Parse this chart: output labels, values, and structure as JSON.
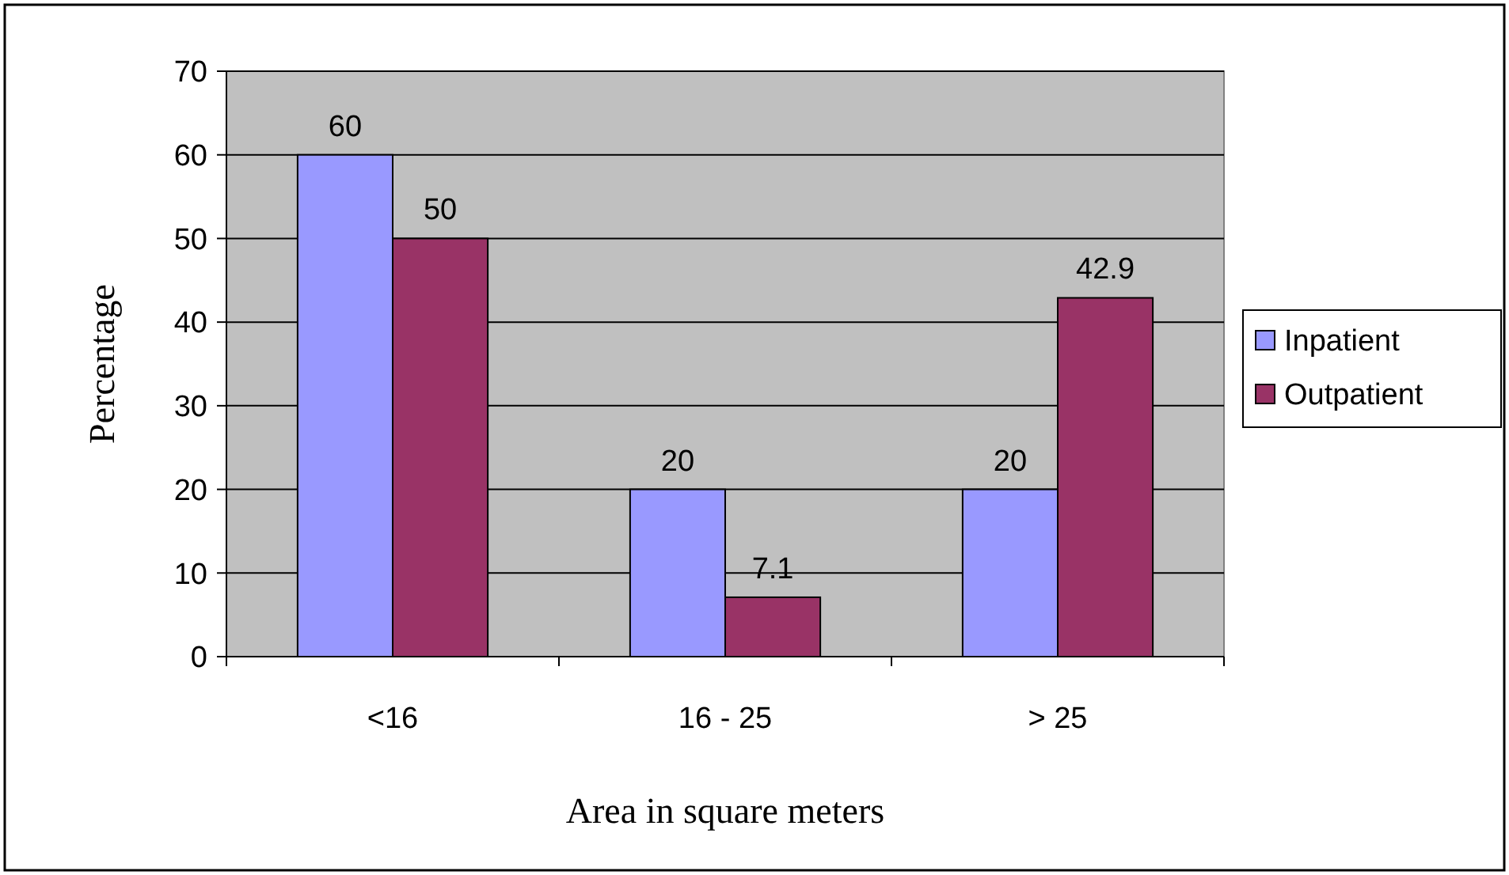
{
  "chart_data": {
    "type": "bar",
    "xlabel": "Area in square meters",
    "ylabel": "Percentage",
    "categories": [
      "<16",
      "16 - 25",
      "> 25"
    ],
    "series": [
      {
        "name": "Inpatient",
        "color": "#9999ff",
        "values": [
          60,
          20,
          20
        ]
      },
      {
        "name": "Outpatient",
        "color": "#993366",
        "values": [
          50,
          7.1,
          42.9
        ]
      }
    ],
    "ylim": [
      0,
      70
    ],
    "yticks": [
      0,
      10,
      20,
      30,
      40,
      50,
      60,
      70
    ],
    "grid": "y",
    "legend": "right",
    "data_labels": true
  }
}
